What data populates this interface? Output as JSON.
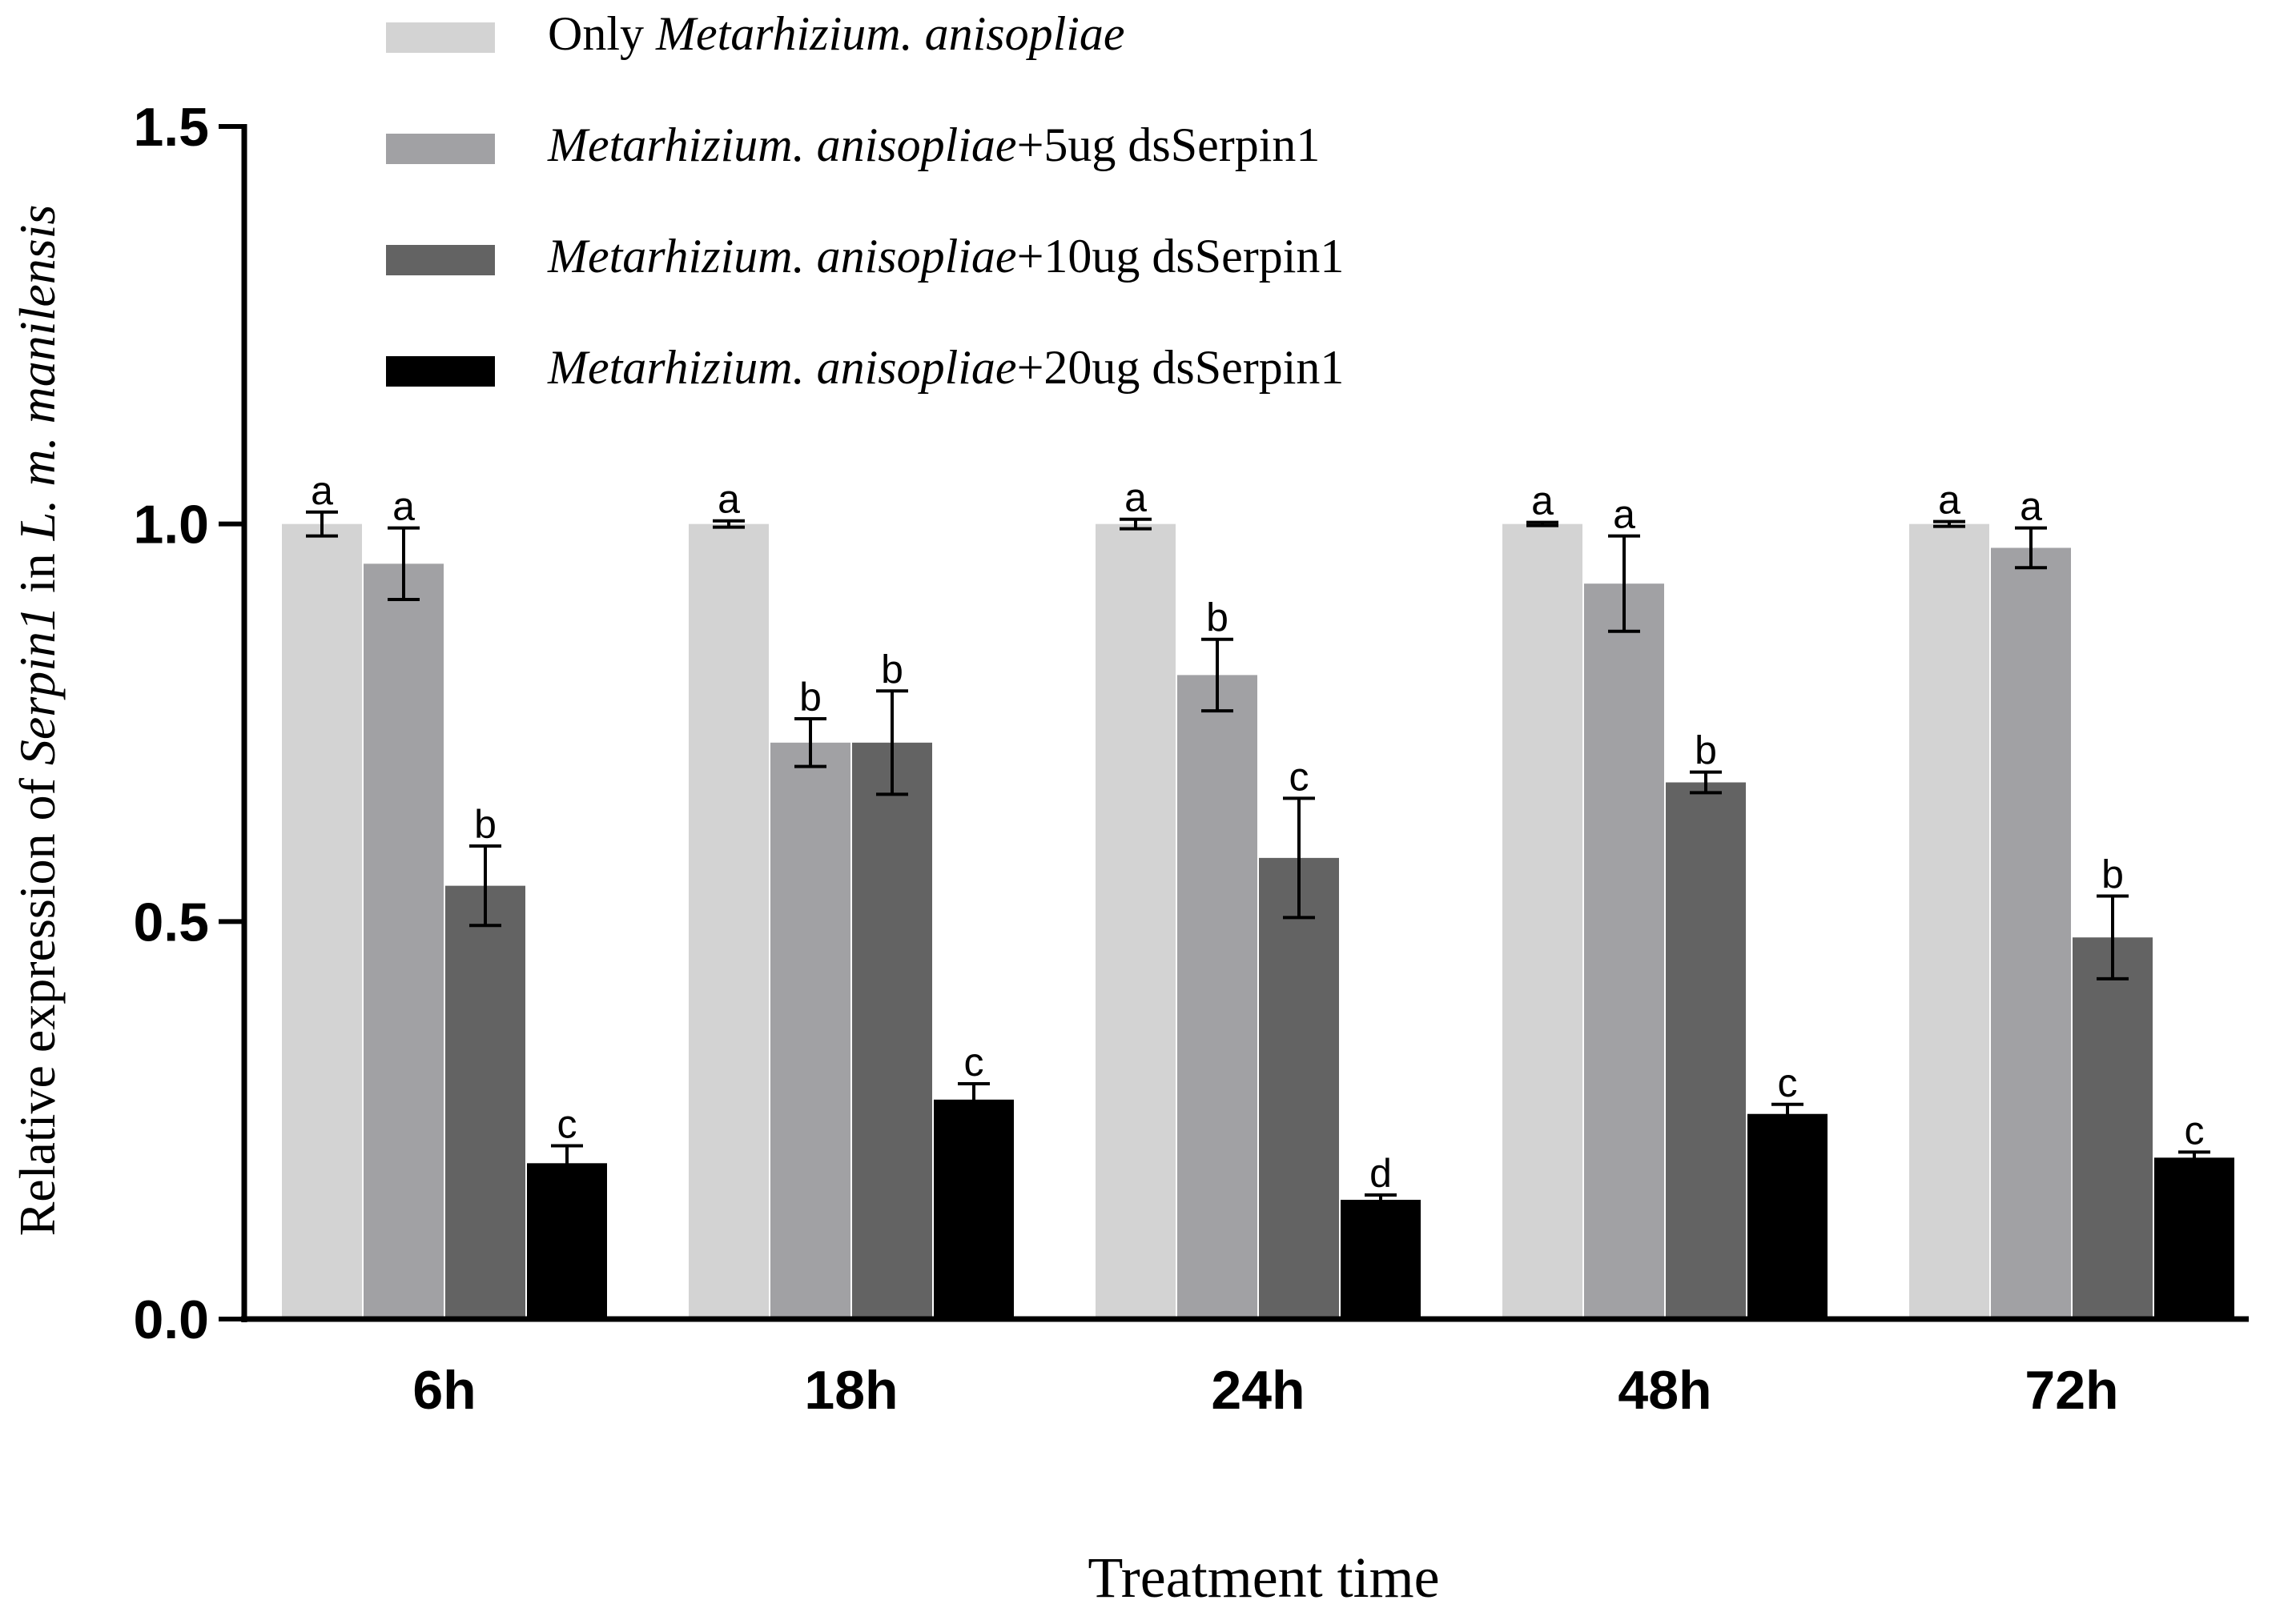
{
  "chart_data": {
    "type": "bar",
    "ylabel": {
      "pre": "Relative expression of ",
      "gene": "Serpin1",
      "mid": " in ",
      "species": "L. m. manilensis"
    },
    "xlabel": "Treatment time",
    "ylim": [
      0,
      1.5
    ],
    "yticks": [
      {
        "value": 0.0,
        "label": "0.0"
      },
      {
        "value": 0.5,
        "label": "0.5"
      },
      {
        "value": 1.0,
        "label": "1.0"
      },
      {
        "value": 1.5,
        "label": "1.5"
      }
    ],
    "categories": [
      "6h",
      "18h",
      "24h",
      "48h",
      "72h"
    ],
    "series": [
      {
        "name": "Only Metarhizium. anisopliae",
        "legend_plain": "Only ",
        "legend_italic": "Metarhizium. anisopliae",
        "legend_suffix": "",
        "color": "#d3d3d3",
        "values": [
          1.0,
          1.0,
          1.0,
          1.0,
          1.0
        ],
        "errors": [
          0.015,
          0.004,
          0.006,
          0.002,
          0.003
        ],
        "letters": [
          "a",
          "a",
          "a",
          "a",
          "a"
        ]
      },
      {
        "name": "Metarhizium. anisopliae+5ug dsSerpin1",
        "legend_plain": "",
        "legend_italic": "Metarhizium. anisopliae",
        "legend_suffix": "+5ug dsSerpin1",
        "color": "#a1a1a4",
        "values": [
          0.95,
          0.725,
          0.81,
          0.925,
          0.97
        ],
        "errors": [
          0.045,
          0.03,
          0.045,
          0.06,
          0.025
        ],
        "letters": [
          "a",
          "b",
          "b",
          "a",
          "a"
        ]
      },
      {
        "name": "Metarhizium. anisopliae+10ug dsSerpin1",
        "legend_plain": "",
        "legend_italic": "Metarhizium. anisopliae",
        "legend_suffix": "+10ug dsSerpin1",
        "color": "#636363",
        "values": [
          0.545,
          0.725,
          0.58,
          0.675,
          0.48
        ],
        "errors": [
          0.05,
          0.065,
          0.075,
          0.013,
          0.052
        ],
        "letters": [
          "b",
          "b",
          "c",
          "b",
          "b"
        ]
      },
      {
        "name": "Metarhizium. anisopliae+20ug dsSerpin1",
        "legend_plain": "",
        "legend_italic": "Metarhizium. anisopliae",
        "legend_suffix": "+20ug dsSerpin1",
        "color": "#000000",
        "values": [
          0.196,
          0.276,
          0.15,
          0.258,
          0.203
        ],
        "errors": [
          0.022,
          0.02,
          0.006,
          0.012,
          0.007
        ],
        "letters": [
          "c",
          "c",
          "d",
          "c",
          "c"
        ]
      }
    ]
  }
}
